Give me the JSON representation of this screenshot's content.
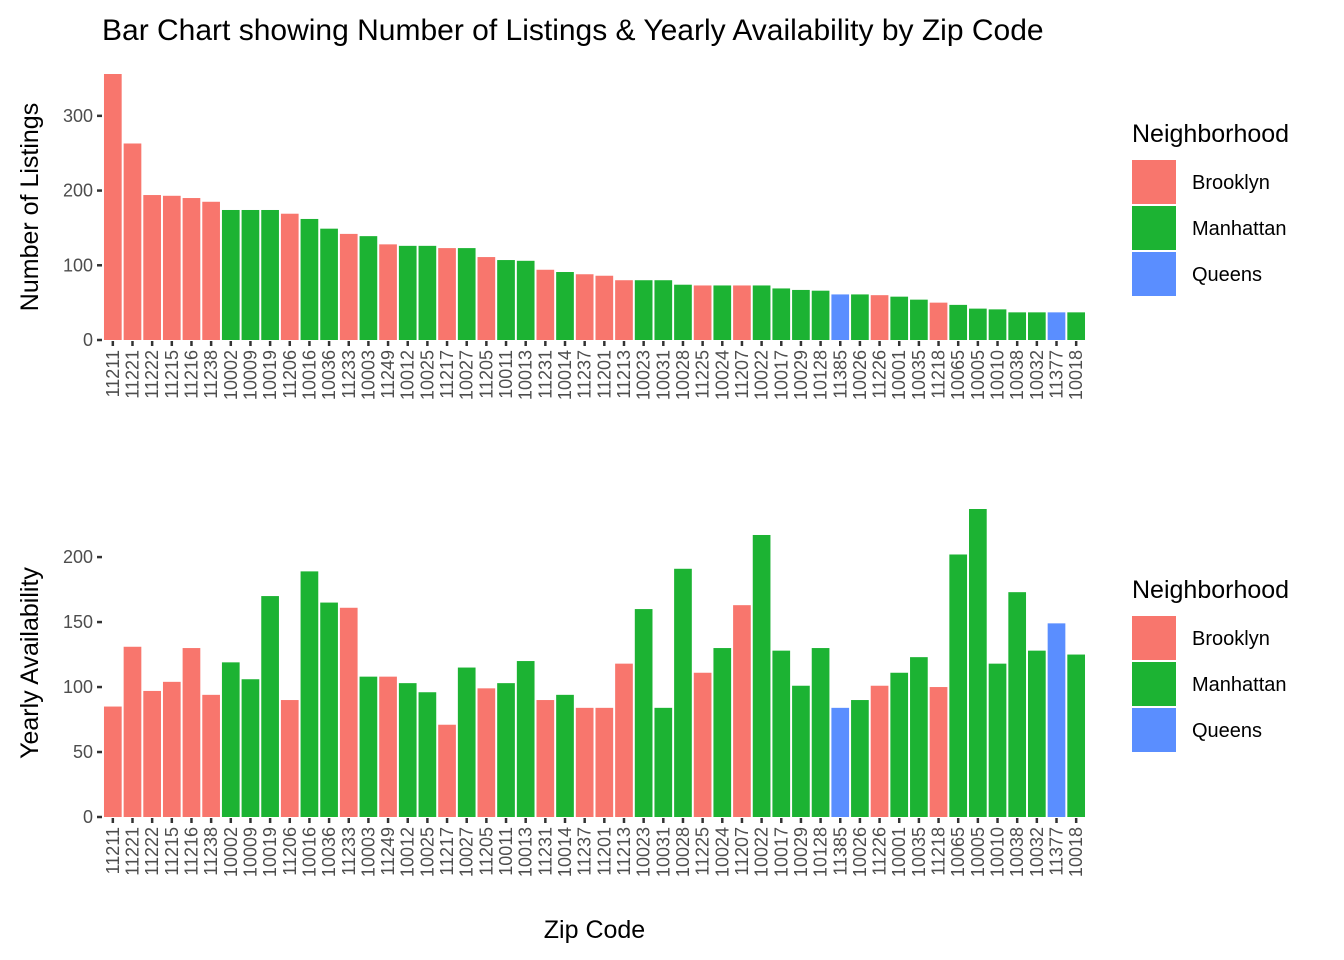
{
  "title": "Bar Chart showing Number of Listings & Yearly Availability by Zip Code",
  "colors": {
    "Brooklyn": "#F8766D",
    "Manhattan": "#1CB333",
    "Queens": "#5A8EFF"
  },
  "chart_data": [
    {
      "type": "bar",
      "ylabel": "Number of Listings",
      "xlabel": "",
      "ylim": [
        0,
        356
      ],
      "yticks": [
        0,
        100,
        200,
        300
      ],
      "legend": {
        "title": "Neighborhood",
        "entries": [
          "Brooklyn",
          "Manhattan",
          "Queens"
        ],
        "placement": "right"
      },
      "categories": [
        "11211",
        "11221",
        "11222",
        "11215",
        "11216",
        "11238",
        "10002",
        "10009",
        "10019",
        "11206",
        "10016",
        "10036",
        "11233",
        "10003",
        "11249",
        "10012",
        "10025",
        "11217",
        "10027",
        "11205",
        "10011",
        "10013",
        "11231",
        "10014",
        "11237",
        "11201",
        "11213",
        "10023",
        "10031",
        "10028",
        "11225",
        "10024",
        "11207",
        "10022",
        "10017",
        "10029",
        "10128",
        "11385",
        "10026",
        "11226",
        "10001",
        "10035",
        "11218",
        "10065",
        "10005",
        "10010",
        "10038",
        "10032",
        "11377",
        "10018"
      ],
      "groups": [
        "Brooklyn",
        "Brooklyn",
        "Brooklyn",
        "Brooklyn",
        "Brooklyn",
        "Brooklyn",
        "Manhattan",
        "Manhattan",
        "Manhattan",
        "Brooklyn",
        "Manhattan",
        "Manhattan",
        "Brooklyn",
        "Manhattan",
        "Brooklyn",
        "Manhattan",
        "Manhattan",
        "Brooklyn",
        "Manhattan",
        "Brooklyn",
        "Manhattan",
        "Manhattan",
        "Brooklyn",
        "Manhattan",
        "Brooklyn",
        "Brooklyn",
        "Brooklyn",
        "Manhattan",
        "Manhattan",
        "Manhattan",
        "Brooklyn",
        "Manhattan",
        "Brooklyn",
        "Manhattan",
        "Manhattan",
        "Manhattan",
        "Manhattan",
        "Queens",
        "Manhattan",
        "Brooklyn",
        "Manhattan",
        "Manhattan",
        "Brooklyn",
        "Manhattan",
        "Manhattan",
        "Manhattan",
        "Manhattan",
        "Manhattan",
        "Queens",
        "Manhattan"
      ],
      "values": [
        356,
        263,
        194,
        193,
        190,
        185,
        174,
        174,
        174,
        169,
        162,
        149,
        142,
        139,
        128,
        126,
        126,
        123,
        123,
        111,
        107,
        106,
        94,
        91,
        88,
        86,
        80,
        80,
        80,
        74,
        73,
        73,
        73,
        73,
        69,
        67,
        66,
        61,
        61,
        60,
        58,
        54,
        50,
        47,
        42,
        41,
        37,
        37,
        37,
        37
      ]
    },
    {
      "type": "bar",
      "ylabel": "Yearly Availability",
      "xlabel": "Zip Code",
      "ylim": [
        0,
        237
      ],
      "yticks": [
        0,
        50,
        100,
        150,
        200
      ],
      "legend": {
        "title": "Neighborhood",
        "entries": [
          "Brooklyn",
          "Manhattan",
          "Queens"
        ],
        "placement": "right"
      },
      "categories": [
        "11211",
        "11221",
        "11222",
        "11215",
        "11216",
        "11238",
        "10002",
        "10009",
        "10019",
        "11206",
        "10016",
        "10036",
        "11233",
        "10003",
        "11249",
        "10012",
        "10025",
        "11217",
        "10027",
        "11205",
        "10011",
        "10013",
        "11231",
        "10014",
        "11237",
        "11201",
        "11213",
        "10023",
        "10031",
        "10028",
        "11225",
        "10024",
        "11207",
        "10022",
        "10017",
        "10029",
        "10128",
        "11385",
        "10026",
        "11226",
        "10001",
        "10035",
        "11218",
        "10065",
        "10005",
        "10010",
        "10038",
        "10032",
        "11377",
        "10018"
      ],
      "groups": [
        "Brooklyn",
        "Brooklyn",
        "Brooklyn",
        "Brooklyn",
        "Brooklyn",
        "Brooklyn",
        "Manhattan",
        "Manhattan",
        "Manhattan",
        "Brooklyn",
        "Manhattan",
        "Manhattan",
        "Brooklyn",
        "Manhattan",
        "Brooklyn",
        "Manhattan",
        "Manhattan",
        "Brooklyn",
        "Manhattan",
        "Brooklyn",
        "Manhattan",
        "Manhattan",
        "Brooklyn",
        "Manhattan",
        "Brooklyn",
        "Brooklyn",
        "Brooklyn",
        "Manhattan",
        "Manhattan",
        "Manhattan",
        "Brooklyn",
        "Manhattan",
        "Brooklyn",
        "Manhattan",
        "Manhattan",
        "Manhattan",
        "Manhattan",
        "Queens",
        "Manhattan",
        "Brooklyn",
        "Manhattan",
        "Manhattan",
        "Brooklyn",
        "Manhattan",
        "Manhattan",
        "Manhattan",
        "Manhattan",
        "Manhattan",
        "Queens",
        "Manhattan"
      ],
      "values": [
        85,
        131,
        97,
        104,
        130,
        94,
        119,
        106,
        170,
        90,
        189,
        165,
        161,
        108,
        108,
        103,
        96,
        71,
        115,
        99,
        103,
        120,
        90,
        94,
        84,
        84,
        118,
        160,
        84,
        191,
        111,
        130,
        163,
        217,
        128,
        101,
        130,
        84,
        90,
        101,
        111,
        123,
        100,
        202,
        237,
        118,
        173,
        128,
        149,
        125
      ]
    }
  ]
}
